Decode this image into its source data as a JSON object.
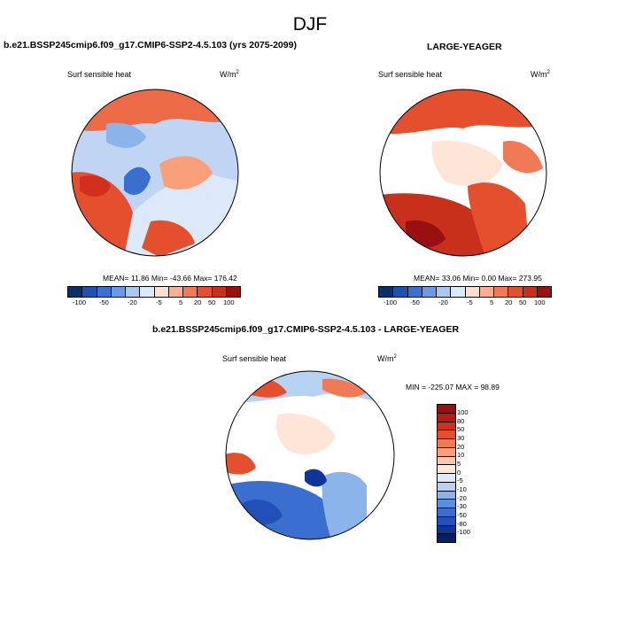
{
  "figure": {
    "title": "DJF"
  },
  "panels": [
    {
      "title": "b.e21.BSSP245cmip6.f09_g17.CMIP6-SSP2-4.5.103 (yrs 2075-2099)",
      "left_label": "Surf sensible heat",
      "units_base": "W/m",
      "units_exp": "2",
      "stats": "MEAN=  11.86   Min= -43.66   Max= 176.42"
    },
    {
      "title": "LARGE-YEAGER",
      "left_label": "Surf sensible heat",
      "units_base": "W/m",
      "units_exp": "2",
      "stats": "MEAN=  33.06   Min=   0.00   Max= 273.95"
    },
    {
      "title": "b.e21.BSSP245cmip6.f09_g17.CMIP6-SSP2-4.5.103 - LARGE-YEAGER",
      "left_label": "Surf sensible heat",
      "units_base": "W/m",
      "units_exp": "2",
      "stats": "MIN = -225.07  MAX =  98.89"
    }
  ],
  "colorbar_abs": {
    "colors": [
      "#08306b",
      "#2050b0",
      "#3a70d0",
      "#6a9ae6",
      "#a8c8f0",
      "#dbe9fb",
      "#fde0cf",
      "#f8b090",
      "#f07a55",
      "#e4502e",
      "#c8301c",
      "#9a1010"
    ],
    "labels": [
      "-100",
      "-50",
      "-20",
      "-5",
      "5",
      "20",
      "50",
      "100"
    ]
  },
  "colorbar_diff": {
    "colors": [
      "#9a1010",
      "#b51c14",
      "#d0301c",
      "#e4502e",
      "#f07a55",
      "#f8a07a",
      "#fcc8ad",
      "#fde5d8",
      "#dbe9fb",
      "#b8d2f4",
      "#8ab4ea",
      "#5a8ee0",
      "#3a6fd0",
      "#2050b8",
      "#10359a",
      "#08206b"
    ],
    "labels": [
      "100",
      "80",
      "50",
      "30",
      "20",
      "10",
      "5",
      "0",
      "-5",
      "-10",
      "-20",
      "-30",
      "-50",
      "-80",
      "-100"
    ]
  }
}
